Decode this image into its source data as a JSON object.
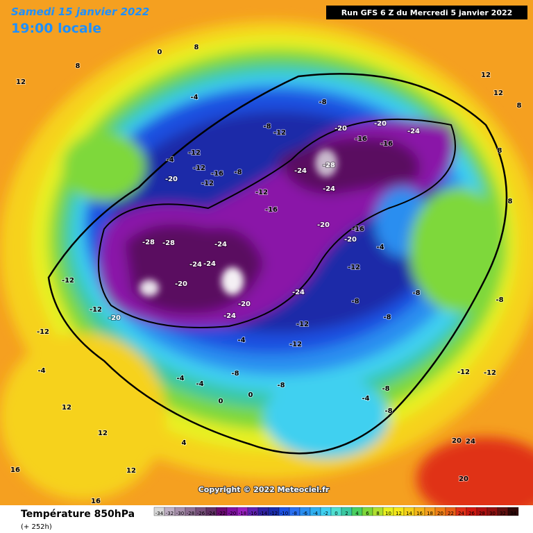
{
  "header": {
    "date": "Samedi 15 janvier 2022",
    "time": "19:00 locale",
    "run": "Run GFS 6 Z du Mercredi 5 janvier 2022"
  },
  "copyright": "Copyright © 2022 Meteociel.fr",
  "legend": {
    "title": "Température 850hPa",
    "lead": "(+ 252h)",
    "ticks": [
      -34,
      -32,
      -30,
      -28,
      -26,
      -24,
      -22,
      -20,
      -18,
      -16,
      -14,
      -12,
      -10,
      -8,
      -6,
      -4,
      -2,
      0,
      2,
      4,
      6,
      8,
      10,
      12,
      14,
      16,
      18,
      20,
      22,
      24,
      26,
      28,
      30,
      32,
      34
    ]
  },
  "contour_labels": [
    8,
    12,
    0,
    8,
    -4,
    -8,
    -8,
    -12,
    -20,
    -20,
    -24,
    -16,
    -16,
    -12,
    -4,
    -12,
    -16,
    -8,
    -24,
    -28,
    -20,
    -12,
    -12,
    -24,
    -16,
    -20,
    -16,
    -20,
    -4,
    -28,
    -28,
    -24,
    -24,
    -20,
    -12,
    -12,
    -20,
    -24,
    -20,
    -24,
    -24,
    -12,
    -12,
    -12,
    -8,
    -8,
    -8,
    -4,
    -8,
    -4,
    -4,
    0,
    0,
    -4,
    -12,
    12,
    12,
    16,
    16,
    12,
    4,
    -8,
    -4,
    -8,
    -8,
    -12,
    -12,
    -8,
    20,
    24,
    20,
    12,
    12,
    8,
    8,
    8
  ]
}
